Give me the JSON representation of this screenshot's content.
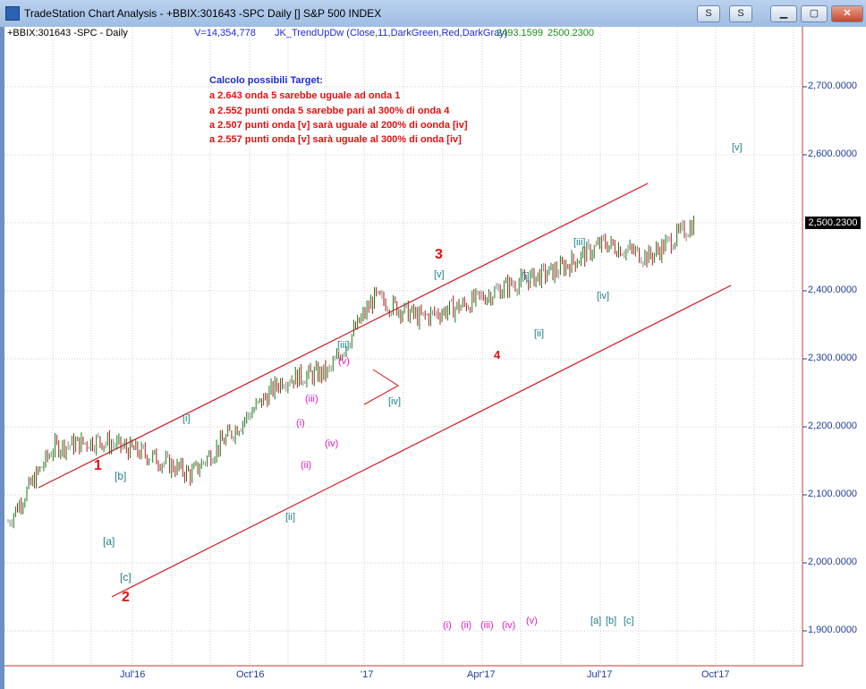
{
  "window": {
    "title": "TradeStation Chart Analysis - +BBIX:301643 -SPC Daily [] S&P 500 INDEX",
    "btn_s": "S",
    "btn_s2": "S"
  },
  "header": {
    "symbol": "+BBIX:301643 -SPC - Daily",
    "volume": "V=14,354,778",
    "indicator": "JK_TrendUpDw (Close,11,DarkGreen,Red,DarkGray)",
    "val1": "2493.1599",
    "val2": "2500.2300"
  },
  "targets": {
    "title": "Calcolo possibili Target:",
    "lines": [
      "a 2.643 onda 5 sarebbe uguale ad onda 1",
      "a 2.552 punti onda 5 sarebbe pari al 300% di onda 4",
      "a 2.507 punti onda [v] sarà uguale al 200% di oonda [iv]",
      "a 2.557 punti onda [v] sarà uguale al 300% di onda [iv]"
    ]
  },
  "y_axis": [
    "2,700.0000",
    "2,600.0000",
    "2,400.0000",
    "2,300.0000",
    "2,200.0000",
    "2,100.0000",
    "2,000.0000",
    "1,900.0000"
  ],
  "last_price": "2,500.2300",
  "x_axis": [
    "Jul'16",
    "Oct'16",
    "'17",
    "Apr'17",
    "Jul'17",
    "Oct'17"
  ],
  "waves": {
    "w1": "1",
    "w2": "2",
    "w3": "3",
    "w4": "4",
    "a": "[a]",
    "b": "[b]",
    "c": "[c]",
    "i_top": "[i]",
    "ii_bot": "[ii]",
    "iii_top": "[iii]",
    "iv_bot": "[iv]",
    "v_top": "[v]",
    "i2": "[i]",
    "ii2": "[ii]",
    "iii2": "[iii]",
    "iv2": "[iv]",
    "v2": "[v]",
    "m_i": "(i)",
    "m_ii": "(ii)",
    "m_iii": "(iii)",
    "m_iv": "(iv)",
    "m_v": "(v)",
    "leg_i": "(i)",
    "leg_ii": "(ii)",
    "leg_iii": "(iii)",
    "leg_iv": "(iv)",
    "leg_v": "(v)",
    "leg_a": "[a]",
    "leg_b": "[b]",
    "leg_c": "[c]"
  },
  "chart_data": {
    "type": "ohlc",
    "title": "+BBIX:301643 -SPC - Daily",
    "price_close_approx": [
      [
        "2016-06",
        2060
      ],
      [
        "2016-07",
        2170
      ],
      [
        "2016-08",
        2180
      ],
      [
        "2016-09",
        2160
      ],
      [
        "2016-10",
        2130
      ],
      [
        "2016-11",
        2200
      ],
      [
        "2016-12",
        2270
      ],
      [
        "2017-01",
        2280
      ],
      [
        "2017-02",
        2390
      ],
      [
        "2017-03",
        2360
      ],
      [
        "2017-04",
        2380
      ],
      [
        "2017-05",
        2410
      ],
      [
        "2017-06",
        2430
      ],
      [
        "2017-07",
        2470
      ],
      [
        "2017-08",
        2450
      ],
      [
        "2017-09",
        2500
      ]
    ],
    "ylim": [
      1880,
      2760
    ]
  }
}
